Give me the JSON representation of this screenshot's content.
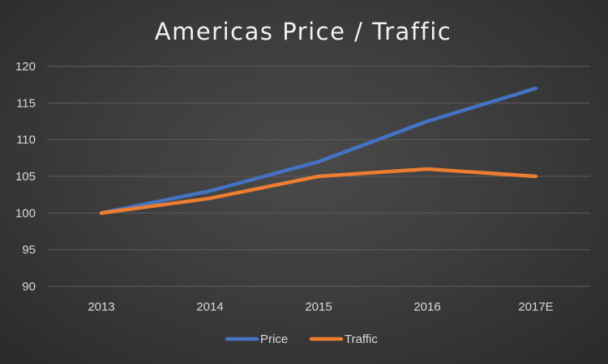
{
  "chart_data": {
    "type": "line",
    "title": "Americas Price / Traffic",
    "categories": [
      "2013",
      "2014",
      "2015",
      "2016",
      "2017E"
    ],
    "series": [
      {
        "name": "Price",
        "values": [
          100,
          103,
          107,
          112.5,
          117
        ],
        "color": "#4472C4"
      },
      {
        "name": "Traffic",
        "values": [
          100,
          102,
          105,
          106,
          105
        ],
        "color": "#ED7D31"
      }
    ],
    "xlabel": "",
    "ylabel": "",
    "ylim": [
      90,
      120
    ],
    "yticks": [
      "90",
      "95",
      "100",
      "105",
      "110",
      "115",
      "120"
    ],
    "grid": true,
    "legend_position": "bottom"
  },
  "colors": {
    "text": "#d9d9d9",
    "title": "#f2f2f2",
    "grid": "#5c5c5c"
  }
}
